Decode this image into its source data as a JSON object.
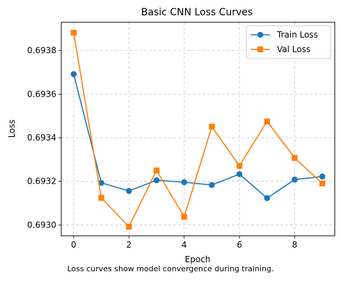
{
  "chart_data": {
    "type": "line",
    "title": "Basic CNN Loss Curves",
    "xlabel": "Epoch",
    "ylabel": "Loss",
    "caption": "Loss curves show model convergence during training.",
    "x": [
      0,
      1,
      2,
      3,
      4,
      5,
      6,
      7,
      8,
      9
    ],
    "xlim": [
      -0.45,
      9.45
    ],
    "ylim": [
      0.69295,
      0.69393
    ],
    "xticks": [
      0,
      2,
      4,
      6,
      8
    ],
    "yticks": [
      0.693,
      0.6932,
      0.6934,
      0.6936,
      0.6938
    ],
    "grid": true,
    "legend_position": "upper right",
    "series": [
      {
        "name": "Train Loss",
        "color": "#1f77b4",
        "marker": "circle",
        "values": [
          0.693692,
          0.693193,
          0.693156,
          0.693205,
          0.693196,
          0.693183,
          0.693233,
          0.693123,
          0.693208,
          0.693222
        ]
      },
      {
        "name": "Val Loss",
        "color": "#ff7f0e",
        "marker": "square",
        "values": [
          0.693882,
          0.693124,
          0.692992,
          0.69325,
          0.693037,
          0.693451,
          0.693271,
          0.693475,
          0.693307,
          0.69319
        ]
      }
    ]
  }
}
